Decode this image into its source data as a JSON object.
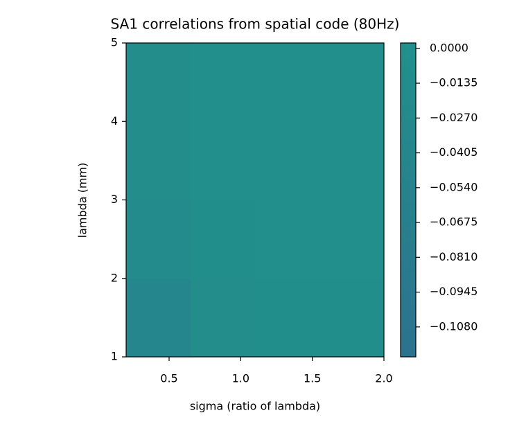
{
  "chart_data": {
    "type": "heatmap",
    "title": "SA1 correlations from spatial code (80Hz)",
    "x_label": "sigma (ratio of lambda)",
    "y_label": "lambda (mm)",
    "x": [
      0.425,
      0.875,
      1.325,
      1.775
    ],
    "y": [
      1.5,
      2.5,
      3.5,
      4.5
    ],
    "z": [
      [
        -0.04,
        -0.015,
        -0.01,
        -0.01
      ],
      [
        -0.02,
        -0.008,
        -0.005,
        -0.005
      ],
      [
        -0.015,
        -0.005,
        -0.004,
        -0.004
      ],
      [
        -0.015,
        -0.006,
        -0.004,
        -0.004
      ]
    ],
    "xlim": [
      0.2,
      2.0
    ],
    "xticks": [
      {
        "value": 0.5,
        "label": "0.5"
      },
      {
        "value": 1.0,
        "label": "1.0"
      },
      {
        "value": 1.5,
        "label": "1.5"
      },
      {
        "value": 2.0,
        "label": "2.0"
      }
    ],
    "ylim": [
      1,
      5
    ],
    "yticks": [
      1,
      2,
      3,
      4,
      5
    ],
    "clim": [
      -0.1196,
      0.0021
    ],
    "colormap": [
      "#2c728e",
      "#21918c"
    ],
    "cticks": [
      {
        "value": 0,
        "label": "0.0000"
      },
      {
        "value": -0.0135,
        "label": "−0.0135"
      },
      {
        "value": -0.027,
        "label": "−0.0270"
      },
      {
        "value": -0.0405,
        "label": "−0.0405"
      },
      {
        "value": -0.054,
        "label": "−0.0540"
      },
      {
        "value": -0.0675,
        "label": "−0.0675"
      },
      {
        "value": -0.081,
        "label": "−0.0810"
      },
      {
        "value": -0.0945,
        "label": "−0.0945"
      },
      {
        "value": -0.108,
        "label": "−0.1080"
      }
    ]
  }
}
